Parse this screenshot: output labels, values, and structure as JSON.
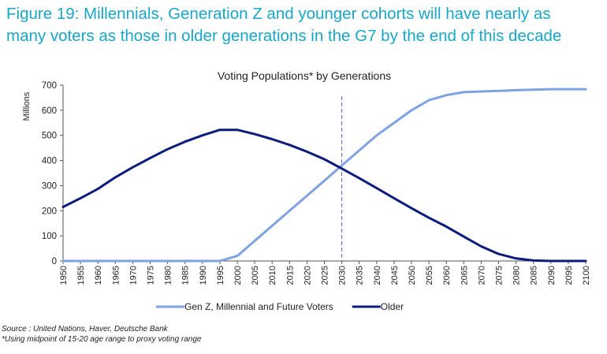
{
  "figure": {
    "title_line1": "Figure 19: Millennials, Generation Z and younger cohorts will have nearly as",
    "title_line2": "many voters as those in older generations in the G7 by the end of this decade",
    "source": "Source : United Nations, Haver, Deutsche Bank",
    "footnote": "*Using midpoint of 15-20 age range to proxy voting range"
  },
  "chart_data": {
    "type": "line",
    "title": "Voting Populations* by Generations",
    "ylabel": "Millions",
    "xlabel": "",
    "ylim": [
      0,
      700
    ],
    "yticks": [
      0,
      100,
      200,
      300,
      400,
      500,
      600,
      700
    ],
    "xlim": [
      1950,
      2100
    ],
    "x": [
      1950,
      1955,
      1960,
      1965,
      1970,
      1975,
      1980,
      1985,
      1990,
      1995,
      2000,
      2005,
      2010,
      2015,
      2020,
      2025,
      2030,
      2035,
      2040,
      2045,
      2050,
      2055,
      2060,
      2065,
      2070,
      2075,
      2080,
      2085,
      2090,
      2095,
      2100
    ],
    "series": [
      {
        "name": "Gen Z, Millennial and Future Voters",
        "color": "#7fa2e0",
        "values": [
          0,
          0,
          0,
          0,
          0,
          0,
          0,
          0,
          0,
          0,
          20,
          80,
          140,
          200,
          260,
          320,
          380,
          440,
          500,
          550,
          600,
          640,
          660,
          672,
          675,
          677,
          680,
          682,
          684,
          684,
          684
        ]
      },
      {
        "name": "Older",
        "color": "#0b1c7c",
        "values": [
          215,
          250,
          287,
          333,
          373,
          410,
          445,
          475,
          500,
          522,
          522,
          505,
          485,
          462,
          435,
          405,
          368,
          330,
          290,
          250,
          210,
          172,
          137,
          97,
          58,
          28,
          10,
          2,
          0,
          0,
          0
        ]
      }
    ],
    "reference_line": {
      "x": 2030,
      "style": "dashed",
      "color": "#6f7bbf"
    },
    "legend_position": "bottom-center",
    "grid": false
  }
}
